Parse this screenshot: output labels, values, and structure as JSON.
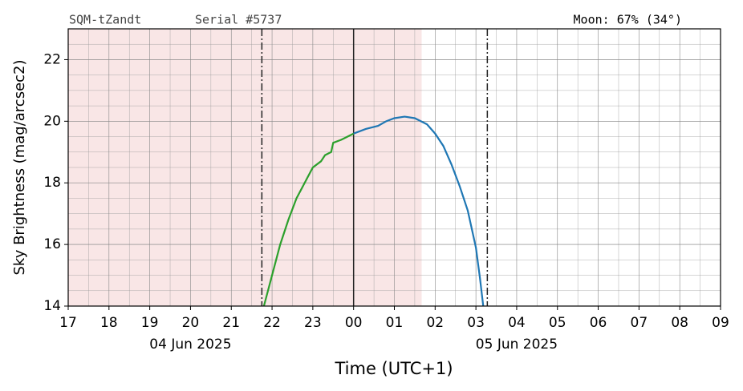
{
  "chart_data": {
    "type": "line",
    "header_left": "SQM-tZandt",
    "header_mid": "Serial #5737",
    "header_right": "Moon: 67% (34°)",
    "ylabel": "Sky Brightness (mag/arcsec2)",
    "xlabel": "Time (UTC+1)",
    "xlim": [
      17,
      33
    ],
    "ylim": [
      14,
      23
    ],
    "xticks": [
      17,
      18,
      19,
      20,
      21,
      22,
      23,
      {
        "value": 24,
        "label": "00"
      },
      {
        "value": 25,
        "label": "01"
      },
      {
        "value": 26,
        "label": "02"
      },
      {
        "value": 27,
        "label": "03"
      },
      {
        "value": 28,
        "label": "04"
      },
      {
        "value": 29,
        "label": "05"
      },
      {
        "value": 30,
        "label": "06"
      },
      {
        "value": 31,
        "label": "07"
      },
      {
        "value": 32,
        "label": "08"
      },
      {
        "value": 33,
        "label": "09"
      }
    ],
    "date_labels": [
      {
        "value": 20,
        "label": "04 Jun 2025"
      },
      {
        "value": 28,
        "label": "05 Jun 2025"
      }
    ],
    "yticks": [
      14,
      16,
      18,
      20,
      22
    ],
    "grid": true,
    "minor_grid": true,
    "shade": {
      "range": [
        17,
        25.67
      ],
      "color": "#f9e6e6"
    },
    "vlines": [
      {
        "value": 21.75,
        "style": "dashdot"
      },
      {
        "value": 24,
        "style": "solid"
      },
      {
        "value": 27.28,
        "style": "dashdot"
      }
    ],
    "series": [
      {
        "color": "#2ca02c",
        "x": [
          21.8,
          22.0,
          22.2,
          22.4,
          22.6,
          22.8,
          23.0,
          23.2,
          23.3,
          23.45,
          23.5,
          23.7,
          24.0
        ],
        "values": [
          14,
          15.0,
          16.0,
          16.8,
          17.5,
          18.0,
          18.5,
          18.7,
          18.9,
          19.0,
          19.3,
          19.4,
          19.6
        ]
      },
      {
        "color": "#1f77b4",
        "x": [
          24.0,
          24.3,
          24.6,
          24.8,
          25.0,
          25.25,
          25.5,
          25.8,
          26.0,
          26.2,
          26.4,
          26.6,
          26.8,
          27.0,
          27.1,
          27.18
        ],
        "values": [
          19.6,
          19.75,
          19.85,
          20.0,
          20.1,
          20.15,
          20.1,
          19.9,
          19.6,
          19.2,
          18.6,
          17.9,
          17.1,
          15.9,
          14.9,
          14.0
        ]
      }
    ]
  }
}
